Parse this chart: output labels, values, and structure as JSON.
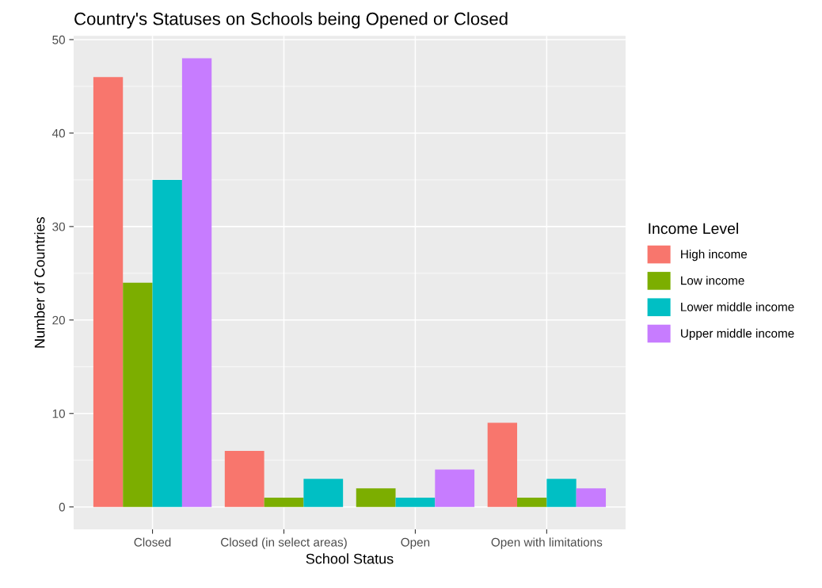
{
  "chart_data": {
    "type": "bar",
    "title": "Country's Statuses on Schools being Opened or Closed",
    "xlabel": "School Status",
    "ylabel": "Number of Countries",
    "legend_title": "Income Level",
    "categories": [
      "Closed",
      "Closed (in select areas)",
      "Open",
      "Open with limitations"
    ],
    "series": [
      {
        "name": "High income",
        "color": "#f8766d",
        "values": [
          46,
          6,
          null,
          9
        ]
      },
      {
        "name": "Low income",
        "color": "#7cae00",
        "values": [
          24,
          1,
          2,
          1
        ]
      },
      {
        "name": "Lower middle income",
        "color": "#00bfc4",
        "values": [
          35,
          3,
          1,
          3
        ]
      },
      {
        "name": "Upper middle income",
        "color": "#c77cff",
        "values": [
          48,
          null,
          4,
          2
        ]
      }
    ],
    "ylim": [
      -2.4,
      50.4
    ],
    "yticks": [
      0,
      10,
      20,
      30,
      40,
      50
    ],
    "grid": true,
    "legend": "right"
  }
}
